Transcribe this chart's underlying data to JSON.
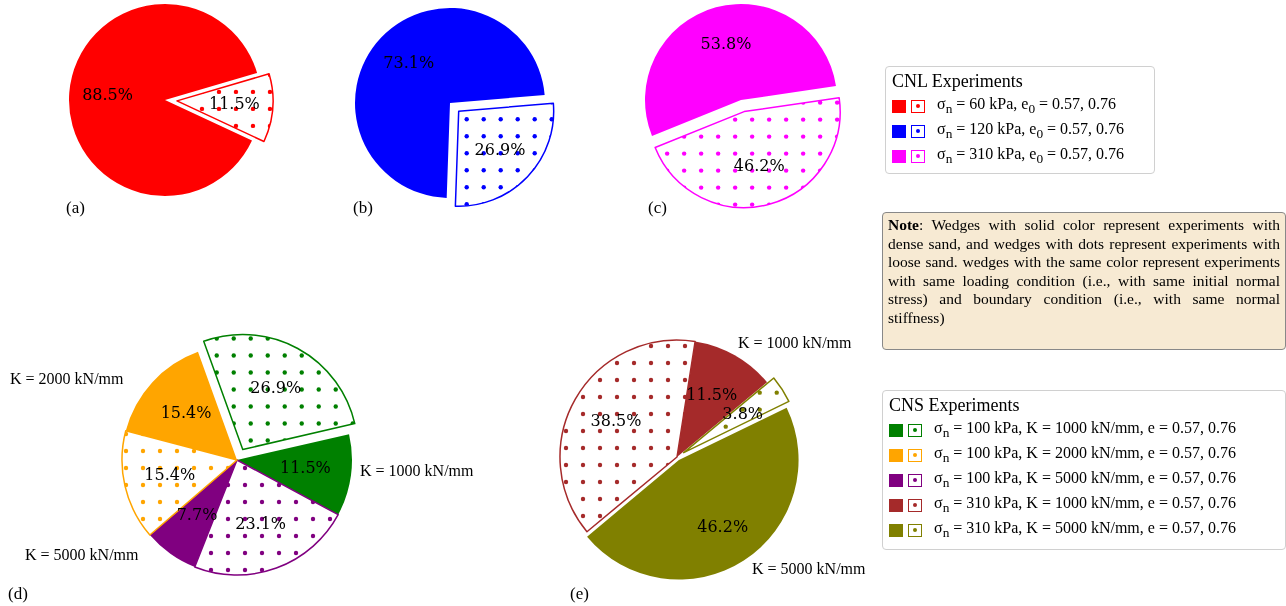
{
  "chart_data": [
    {
      "type": "pie",
      "title": "(a)",
      "categories": [
        null,
        null
      ],
      "values": [
        88.5,
        11.5
      ],
      "colors": [
        "#ff0000",
        "#ff0000"
      ],
      "value_labels": [
        "88.5%",
        "11.5%"
      ]
    },
    {
      "type": "pie",
      "title": "(b)",
      "categories": [
        null,
        null
      ],
      "values": [
        73.1,
        26.9
      ],
      "colors": [
        "#0000ff",
        "#0000ff"
      ],
      "value_labels": [
        "73.1%",
        "26.9%"
      ]
    },
    {
      "type": "pie",
      "title": "(c)",
      "categories": [
        null,
        null
      ],
      "values": [
        53.8,
        46.2
      ],
      "colors": [
        "#ff00ff",
        "#ff00ff"
      ],
      "value_labels": [
        "53.8%",
        "46.2%"
      ]
    },
    {
      "type": "other",
      "legend_title": "CNL Experiments",
      "categories": [
        "σ$_{n}$ = 60 kPa, e$_{0}$ = 0.57, 0.76",
        "σ$_{n}$ = 120 kPa, e$_{0}$ = 0.57, 0.76",
        "σ$_{n}$ = 310 kPa, e$_{0}$ = 0.57, 0.76"
      ],
      "colors": [
        "#ff0000",
        "#0000ff",
        "#ff00ff"
      ]
    },
    {
      "type": "other",
      "annotations": [
        "Note: Wedges with solid color represent experiments with dense sand, and wedges with dots represent experiments with loose sand.  wedges with the same color represent experiments with same loading condition (i.e., with same initial normal stress) and boundary condition (i.e., with same normal stiffness)"
      ]
    },
    {
      "type": "pie",
      "title": "(d)",
      "categories": [
        null,
        null,
        null,
        null,
        null,
        null
      ],
      "values": [
        11.5,
        23.1,
        7.7,
        15.4,
        15.4,
        26.9
      ],
      "colors": [
        "#008000",
        "#800080",
        "#800080",
        "#ffa500",
        "#ffa500",
        "#008000"
      ],
      "value_labels": [
        "11.5%",
        "23.1%",
        "7.7%",
        "15.4%",
        "15.4%",
        "26.9%"
      ],
      "annotations": [
        "K = 2000 kN/mm",
        "K = 1000 kN/mm",
        "K = 5000 kN/mm"
      ]
    },
    {
      "type": "pie",
      "title": "(e)",
      "categories": [
        null,
        null,
        null,
        null
      ],
      "values": [
        46.2,
        38.5,
        11.5,
        3.8
      ],
      "colors": [
        "#808000",
        "#a52a2a",
        "#a52a2a",
        "#808000"
      ],
      "value_labels": [
        "46.2%",
        "38.5%",
        "11.5%",
        "3.8%"
      ],
      "annotations": [
        "K = 1000 kN/mm",
        "K = 5000 kN/mm"
      ]
    },
    {
      "type": "other",
      "legend_title": "CNS Experiments",
      "categories": [
        "σ$_{n}$ = 100 kPa, K = 1000 kN/mm, e = 0.57, 0.76",
        "σ$_{n}$ = 100 kPa, K = 2000 kN/mm, e = 0.57, 0.76",
        "σ$_{n}$ = 100 kPa, K = 5000 kN/mm, e = 0.57, 0.76",
        "σ$_{n}$ = 310 kPa, K = 1000 kN/mm, e = 0.57, 0.76",
        "σ$_{n}$ = 310 kPa, K = 5000 kN/mm, e = 0.57, 0.76"
      ],
      "colors": [
        "#008000",
        "#ffa500",
        "#800080",
        "#a52a2a",
        "#808000"
      ]
    }
  ]
}
